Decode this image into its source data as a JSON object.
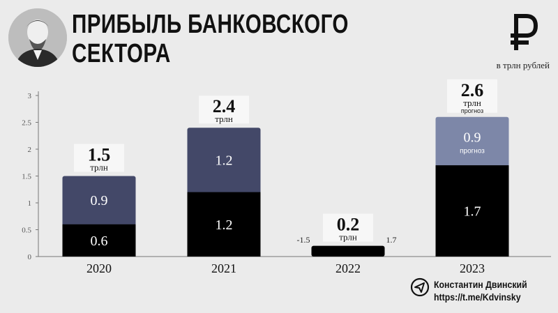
{
  "header": {
    "title_line1": "ПРИБЫЛЬ БАНКОВСКОГО",
    "title_line2": "СЕКТОРА",
    "unit": "в трлн рублей",
    "currency_icon": "ruble-icon",
    "portrait_icon": "portrait-photo"
  },
  "author": {
    "icon": "telegram-icon",
    "name": "Константин Двинский",
    "link": "https://t.me/Kdvinsky"
  },
  "colors": {
    "background": "#ebebeb",
    "bottom_segment": "#000000",
    "top_segment": "#434868",
    "forecast_segment": "#7d87a8",
    "label_box": "#f7f7f7"
  },
  "chart_data": {
    "type": "bar",
    "stacked": true,
    "categories": [
      "2020",
      "2021",
      "2022",
      "2023"
    ],
    "series": [
      {
        "values": [
          0.6,
          1.2,
          0.2,
          1.7
        ]
      },
      {
        "values": [
          0.9,
          1.2,
          0,
          0.9
        ]
      }
    ],
    "segment_labels": [
      [
        "0.6",
        "0.9"
      ],
      [
        "1.2",
        "1.2"
      ],
      [
        "",
        ""
      ],
      [
        "1.7",
        "0.9"
      ]
    ],
    "segment_sublabels": [
      [
        "",
        ""
      ],
      [
        "",
        ""
      ],
      [
        "",
        ""
      ],
      [
        "",
        "прогноз"
      ]
    ],
    "totals": [
      {
        "value": "1.5",
        "unit": "трлн",
        "note": ""
      },
      {
        "value": "2.4",
        "unit": "трлн",
        "note": ""
      },
      {
        "value": "0.2",
        "unit": "трлн",
        "note": ""
      },
      {
        "value": "2.6",
        "unit": "трлн",
        "note": "прогноз"
      }
    ],
    "annotations": [
      {
        "category": "2022",
        "side": "left",
        "text": "-1.5"
      },
      {
        "category": "2022",
        "side": "right",
        "text": "1.7"
      }
    ],
    "yticks": [
      "0",
      "0.5",
      "1",
      "1.5",
      "2",
      "2.5",
      "3"
    ],
    "ylim": [
      0,
      3
    ],
    "grid": false,
    "legend": "none"
  }
}
